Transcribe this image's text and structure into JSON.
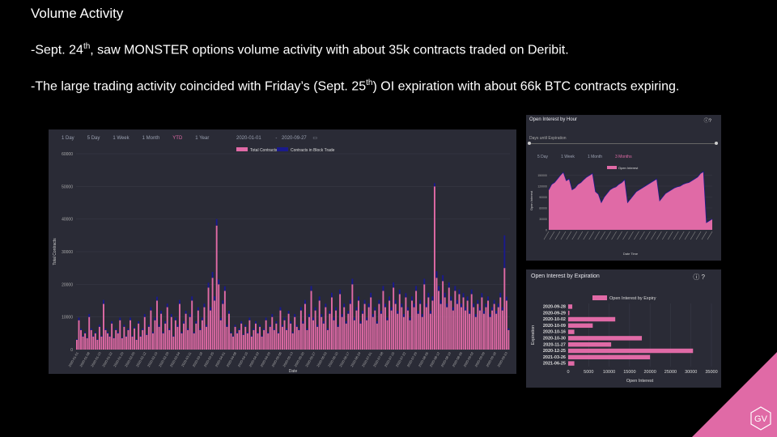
{
  "slide": {
    "title": "Volume Activity",
    "bullet1_pre": "-Sept. 24",
    "bullet1_sup": "th",
    "bullet1_post": ", saw MONSTER options volume activity with about 35k contracts traded on Deribit.",
    "bullet2_pre": "-The large trading activity coincided with Friday’s (Sept. 25",
    "bullet2_sup": "th",
    "bullet2_post": ") OI expiration with about 66k BTC contracts expiring.",
    "logo_text": "GV"
  },
  "main_panel": {
    "tabs": [
      "1 Day",
      "5 Day",
      "1 Week",
      "1 Month",
      "YTD",
      "1 Year"
    ],
    "active_tab": "YTD",
    "date_from": "2020-01-01",
    "date_sep": "-",
    "date_to": "2020-09-27",
    "calendar_icon": "calendar-icon"
  },
  "hour_panel": {
    "title": "Open Interest by Hour",
    "days_label": "Days until Expiration",
    "tabs": [
      "5 Day",
      "1 Week",
      "1 Month",
      "3 Months"
    ],
    "active_tab": "3 Months",
    "icons": [
      "info-icon",
      "help-icon"
    ]
  },
  "exp_panel": {
    "title": "Open Interest by Expiration",
    "icons": [
      "info-icon",
      "help-icon"
    ]
  },
  "colors": {
    "pink": "#e06aa6",
    "navy": "#1a1a8c",
    "panel": "#2a2b36",
    "grid": "#3c3d4a"
  },
  "chart_data": [
    {
      "id": "volume",
      "type": "bar",
      "stacked": true,
      "xlabel": "Date",
      "ylabel": "Total Contracts",
      "ylim": [
        0,
        60000
      ],
      "yticks": [
        0,
        10000,
        20000,
        30000,
        40000,
        50000,
        60000
      ],
      "legend": [
        "Total Contracts",
        "Contracts in Block Trade"
      ],
      "legend_position": "top-center",
      "x_tick_labels": [
        "2020-01-01",
        "2020-01-08",
        "2020-01-15",
        "2020-01-22",
        "2020-01-29",
        "2020-02-05",
        "2020-02-12",
        "2020-02-19",
        "2020-02-26",
        "2020-03-04",
        "2020-03-11",
        "2020-03-18",
        "2020-03-25",
        "2020-04-01",
        "2020-04-08",
        "2020-04-15",
        "2020-04-22",
        "2020-04-29",
        "2020-05-06",
        "2020-05-13",
        "2020-05-20",
        "2020-05-27",
        "2020-06-03",
        "2020-06-10",
        "2020-06-17",
        "2020-06-24",
        "2020-07-01",
        "2020-07-08",
        "2020-07-15",
        "2020-07-22",
        "2020-07-29",
        "2020-08-05",
        "2020-08-12",
        "2020-08-19",
        "2020-08-26",
        "2020-09-02",
        "2020-09-09",
        "2020-09-16",
        "2020-09-23"
      ],
      "series": [
        {
          "name": "Total Contracts",
          "values": [
            3000,
            9000,
            6000,
            4000,
            5000,
            3500,
            10000,
            6000,
            4000,
            5000,
            3000,
            7000,
            4000,
            14000,
            6000,
            5000,
            4000,
            8000,
            3500,
            6000,
            5000,
            9000,
            3500,
            7000,
            4000,
            6000,
            9000,
            4000,
            6500,
            3000,
            8000,
            4000,
            6000,
            10000,
            4500,
            7000,
            12000,
            5000,
            9000,
            15000,
            7000,
            11000,
            5000,
            8000,
            13000,
            6000,
            10000,
            4000,
            9000,
            7000,
            14000,
            5000,
            8000,
            11000,
            6000,
            10000,
            15000,
            5000,
            8000,
            12000,
            6000,
            9000,
            13000,
            7000,
            19000,
            12000,
            22000,
            15000,
            38000,
            20000,
            9000,
            14000,
            18000,
            7000,
            11000,
            5000,
            4000,
            7000,
            5000,
            6000,
            8000,
            4500,
            7000,
            5000,
            9000,
            4000,
            6000,
            8000,
            5000,
            7000,
            4000,
            6000,
            9000,
            5000,
            7000,
            10000,
            6000,
            8000,
            5000,
            12000,
            7000,
            9000,
            6000,
            11000,
            8000,
            5000,
            10000,
            7000,
            6000,
            12000,
            8000,
            14000,
            6000,
            10000,
            18000,
            9000,
            12000,
            7000,
            15000,
            10000,
            8000,
            13000,
            6000,
            11000,
            16000,
            9000,
            12000,
            7000,
            17000,
            10000,
            13000,
            8000,
            11000,
            14000,
            20000,
            9000,
            12000,
            15000,
            8000,
            11000,
            14000,
            9000,
            13000,
            16000,
            10000,
            12000,
            8000,
            14000,
            11000,
            18000,
            13000,
            9000,
            15000,
            12000,
            19000,
            14000,
            11000,
            17000,
            13000,
            10000,
            16000,
            12000,
            9000,
            15000,
            13000,
            18000,
            11000,
            14000,
            10000,
            20000,
            13000,
            16000,
            11000,
            15000,
            50000,
            22000,
            18000,
            14000,
            21000,
            16000,
            13000,
            19000,
            15000,
            12000,
            18000,
            14000,
            17000,
            13000,
            16000,
            12000,
            15000,
            11000,
            17000,
            13000,
            10000,
            14000,
            12000,
            16000,
            11000,
            13000,
            15000,
            10000,
            12000,
            14000,
            11000,
            13000,
            16000,
            12000,
            25000,
            15000,
            6000
          ]
        },
        {
          "name": "Contracts in Block Trade",
          "values": [
            200,
            800,
            400,
            300,
            400,
            200,
            900,
            500,
            300,
            400,
            200,
            600,
            300,
            1200,
            500,
            400,
            300,
            700,
            200,
            500,
            400,
            800,
            200,
            600,
            300,
            500,
            800,
            300,
            500,
            200,
            700,
            300,
            500,
            900,
            300,
            600,
            1000,
            400,
            800,
            1200,
            600,
            900,
            400,
            700,
            1100,
            500,
            900,
            300,
            800,
            600,
            1200,
            400,
            700,
            900,
            500,
            900,
            1300,
            400,
            700,
            1000,
            500,
            800,
            1100,
            600,
            1500,
            1000,
            1800,
            1300,
            2000,
            1500,
            700,
            1100,
            1400,
            600,
            900,
            400,
            300,
            600,
            400,
            500,
            700,
            300,
            600,
            400,
            800,
            300,
            500,
            700,
            400,
            600,
            300,
            500,
            800,
            400,
            600,
            900,
            500,
            700,
            400,
            1000,
            600,
            800,
            500,
            900,
            700,
            400,
            900,
            600,
            500,
            1000,
            700,
            1200,
            500,
            900,
            1500,
            800,
            1000,
            600,
            1300,
            900,
            700,
            1100,
            500,
            900,
            1400,
            800,
            1000,
            600,
            1400,
            900,
            1100,
            700,
            900,
            1200,
            1700,
            800,
            1000,
            1300,
            700,
            900,
            1200,
            800,
            1100,
            1400,
            900,
            1000,
            700,
            1200,
            900,
            1500,
            1100,
            800,
            1300,
            1000,
            1600,
            1200,
            900,
            1400,
            1100,
            900,
            1300,
            1000,
            800,
            1300,
            1100,
            1500,
            900,
            1200,
            900,
            1700,
            1100,
            1400,
            900,
            1300,
            1000,
            2000,
            1500,
            1200,
            1800,
            1400,
            1100,
            1600,
            1300,
            1000,
            1500,
            1200,
            1400,
            1100,
            1300,
            1000,
            1300,
            900,
            1400,
            1100,
            900,
            1200,
            1000,
            1300,
            900,
            1100,
            1300,
            900,
            1000,
            1200,
            900,
            1100,
            1400,
            1000,
            10000,
            1200,
            500
          ]
        }
      ]
    },
    {
      "id": "oi_hour",
      "type": "area",
      "legend": [
        "Open Interest"
      ],
      "xlabel": "Date Time",
      "ylabel": "Open Interest",
      "ylim": [
        0,
        160000
      ],
      "yticks": [
        0,
        15000,
        30000,
        45000,
        60000,
        75000,
        90000,
        105000,
        120000,
        135000,
        150000,
        160000
      ],
      "values": [
        110000,
        125000,
        130000,
        140000,
        150000,
        158000,
        135000,
        140000,
        110000,
        115000,
        125000,
        130000,
        138000,
        145000,
        150000,
        155000,
        105000,
        98000,
        75000,
        90000,
        100000,
        110000,
        115000,
        118000,
        125000,
        130000,
        138000,
        75000,
        85000,
        95000,
        105000,
        110000,
        115000,
        120000,
        125000,
        130000,
        135000,
        140000,
        80000,
        90000,
        100000,
        105000,
        110000,
        115000,
        118000,
        120000,
        125000,
        128000,
        130000,
        135000,
        140000,
        145000,
        155000,
        160000,
        20000,
        25000,
        30000
      ]
    },
    {
      "id": "oi_expiry",
      "type": "bar",
      "orientation": "horizontal",
      "legend": [
        "Open Interest by Expiry"
      ],
      "xlabel": "Open Interest",
      "ylabel": "Expiration",
      "xlim": [
        0,
        35000
      ],
      "xticks": [
        0,
        5000,
        10000,
        15000,
        20000,
        25000,
        30000,
        35000
      ],
      "categories": [
        "2020-09-28",
        "2020-09-29",
        "2020-10-02",
        "2020-10-09",
        "2020-10-16",
        "2020-10-30",
        "2020-11-27",
        "2020-12-25",
        "2021-03-26",
        "2021-06-25"
      ],
      "values": [
        1000,
        300,
        11500,
        6000,
        1500,
        18000,
        10500,
        30500,
        20000,
        1500
      ]
    }
  ]
}
